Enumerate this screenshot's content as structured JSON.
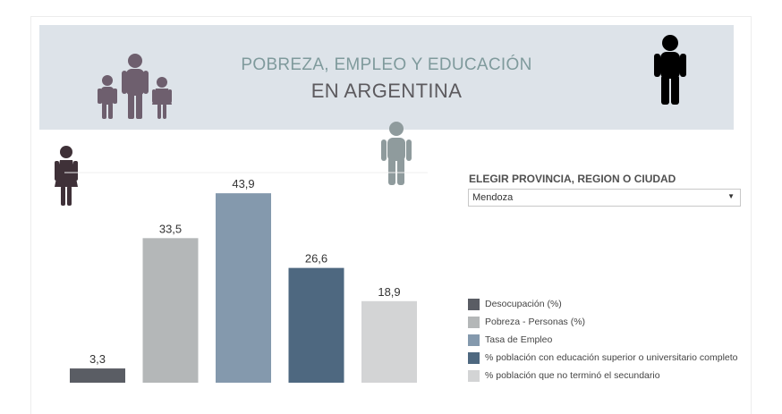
{
  "header": {
    "title_line1": "POBREZA, EMPLEO Y EDUCACIÓN",
    "title_line2": "EN ARGENTINA"
  },
  "icons": {
    "family": "family-icon",
    "man": "man-icon",
    "woman": "woman-icon",
    "child": "child-icon"
  },
  "colors": {
    "banner": "#dde3e9",
    "family": "#6e5f6e",
    "woman": "#3f3138",
    "child": "#8f9b9d",
    "man": "#000000"
  },
  "filter": {
    "label": "ELEGIR PROVINCIA, REGION O CIUDAD",
    "value": "Mendoza"
  },
  "chart_data": {
    "type": "bar",
    "categories": [
      "Desocupación (%)",
      "Pobreza - Personas (%)",
      "Tasa de Empleo",
      "% población con educación superior o universitario completo",
      "% población que no terminó el secundario"
    ],
    "values": [
      3.3,
      33.5,
      43.9,
      26.6,
      18.9
    ],
    "value_labels": [
      "3,3",
      "33,5",
      "43,9",
      "26,6",
      "18,9"
    ],
    "colors": [
      "#5a5d64",
      "#b4b7b8",
      "#8499ad",
      "#4e6880",
      "#d3d4d5"
    ],
    "ylim": [
      0,
      46
    ],
    "legend_position": "right",
    "grid": false
  }
}
